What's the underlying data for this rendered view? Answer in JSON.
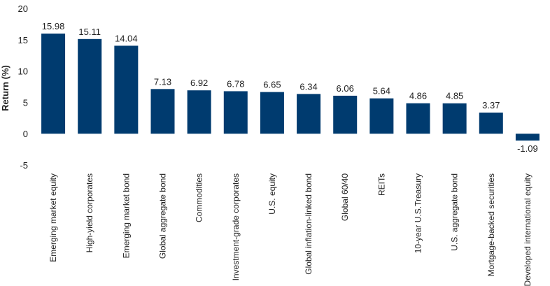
{
  "chart_data": {
    "type": "bar",
    "ylabel": "Return (%)",
    "ylim": [
      -5,
      20
    ],
    "yticks": [
      -5,
      0,
      5,
      10,
      15,
      20
    ],
    "grid": false,
    "bar_color": "#003b6f",
    "categories": [
      "Emerging market equity",
      "High-yield corporates",
      "Emerging market bond",
      "Global aggregate bond",
      "Commodities",
      "Investment-grade corporates",
      "U.S. equity",
      "Global inflation-linked bond",
      "Global 60/40",
      "REITs",
      "10-year U.S.Treasury",
      "U.S. aggregate bond",
      "Mortgage-backed securities",
      "Developed international equity"
    ],
    "values": [
      15.98,
      15.11,
      14.04,
      7.13,
      6.92,
      6.78,
      6.65,
      6.34,
      6.06,
      5.64,
      4.86,
      4.85,
      3.37,
      -1.09
    ],
    "value_labels": [
      "15.98",
      "15.11",
      "14.04",
      "7.13",
      "6.92",
      "6.78",
      "6.65",
      "6.34",
      "6.06",
      "5.64",
      "4.86",
      "4.85",
      "3.37",
      "-1.09"
    ]
  }
}
